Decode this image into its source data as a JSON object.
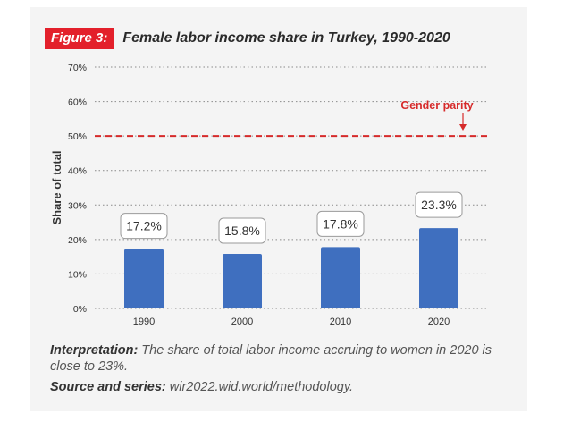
{
  "figure": {
    "tag": "Figure 3:",
    "title": "Female labor income share in Turkey, 1990-2020"
  },
  "chart_data": {
    "type": "bar",
    "categories": [
      "1990",
      "2000",
      "2010",
      "2020"
    ],
    "values": [
      17.2,
      15.8,
      17.8,
      23.3
    ],
    "value_labels": [
      "17.2%",
      "15.8%",
      "17.8%",
      "23.3%"
    ],
    "ylabel": "Share of total",
    "ylim": [
      0,
      70
    ],
    "yticks": [
      0,
      10,
      20,
      30,
      40,
      50,
      60,
      70
    ],
    "ytick_labels": [
      "0%",
      "10%",
      "20%",
      "30%",
      "40%",
      "50%",
      "60%",
      "70%"
    ],
    "grid": "dotted horizontal",
    "reference_line": {
      "value": 50,
      "label": "Gender parity",
      "color": "#d62a2a"
    },
    "bar_color": "#3f6fbf"
  },
  "notes": {
    "interpretation_label": "Interpretation:",
    "interpretation_text": " The share of total labor income accruing to women in 2020 is close to 23%.",
    "source_label": "Source and series:",
    "source_text": " wir2022.wid.world/methodology."
  }
}
